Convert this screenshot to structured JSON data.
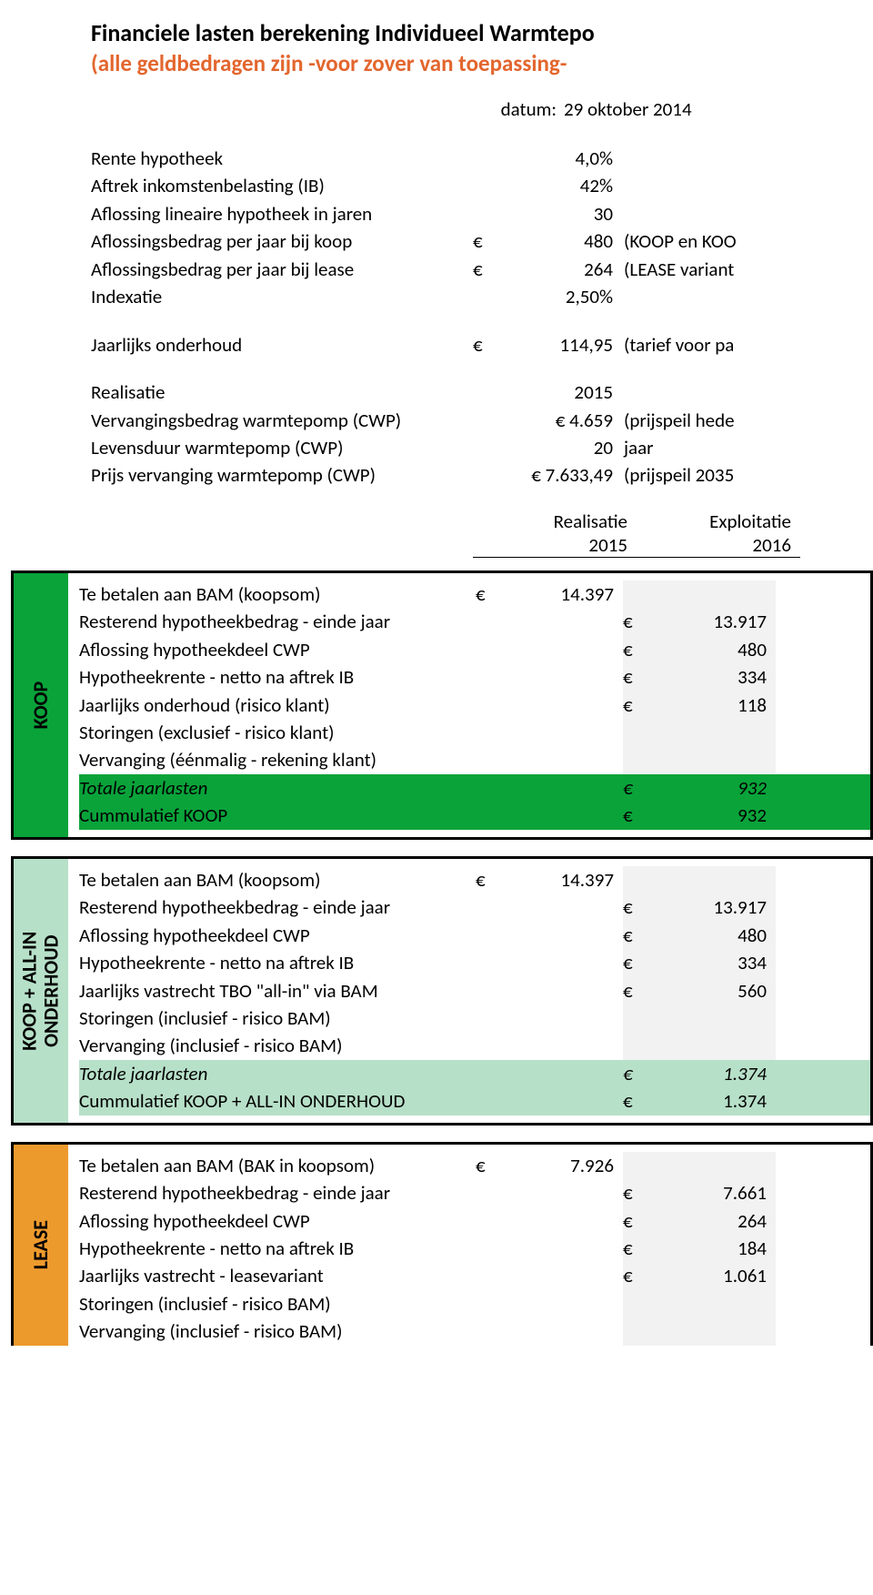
{
  "header": {
    "title": "Financiele lasten berekening Individueel Warmtepo",
    "subtitle": "(alle geldbedragen zijn -voor zover van toepassing-",
    "date_label": "datum:",
    "date_value": "29 oktober 2014"
  },
  "params1": [
    {
      "label": "Rente hypotheek",
      "sym": "",
      "val": "4,0%",
      "note": ""
    },
    {
      "label": "Aftrek inkomstenbelasting (IB)",
      "sym": "",
      "val": "42%",
      "note": ""
    },
    {
      "label": "Aflossing lineaire hypotheek in jaren",
      "sym": "",
      "val": "30",
      "note": ""
    },
    {
      "label": "Aflossingsbedrag per jaar bij koop",
      "sym": "€",
      "val": "480",
      "note": "(KOOP en KOO"
    },
    {
      "label": "Aflossingsbedrag per jaar bij lease",
      "sym": "€",
      "val": "264",
      "note": "(LEASE variant"
    },
    {
      "label": "Indexatie",
      "sym": "",
      "val": "2,50%",
      "note": ""
    }
  ],
  "params2": [
    {
      "label": "Jaarlijks onderhoud",
      "sym": "€",
      "val": "114,95",
      "note": "(tarief voor pa"
    }
  ],
  "params3": [
    {
      "label": "Realisatie",
      "sym": "",
      "val": "2015",
      "note": ""
    },
    {
      "label": "Vervangingsbedrag warmtepomp (CWP)",
      "sym": "",
      "val": "€ 4.659",
      "note": "(prijspeil hede"
    },
    {
      "label": "Levensduur warmtepomp (CWP)",
      "sym": "",
      "val": "20",
      "note": "jaar"
    },
    {
      "label": "Prijs vervanging warmtepomp (CWP)",
      "sym": "",
      "val": "€ 7.633,49",
      "note": "(prijspeil 2035"
    }
  ],
  "year_header": {
    "col1_top": "Realisatie",
    "col1_bot": "2015",
    "col2_top": "Exploitatie",
    "col2_bot": "2016"
  },
  "sections": {
    "koop": {
      "tab": "KOOP",
      "rows": [
        {
          "label": "Te betalen aan BAM (koopsom)",
          "c1sym": "€",
          "c1": "14.397",
          "c2sym": "",
          "c2": ""
        },
        {
          "label": "Resterend hypotheekbedrag - einde jaar",
          "c1sym": "",
          "c1": "",
          "c2sym": "€",
          "c2": "13.917"
        },
        {
          "label": "Aflossing hypotheekdeel CWP",
          "c1sym": "",
          "c1": "",
          "c2sym": "€",
          "c2": "480"
        },
        {
          "label": "Hypotheekrente - netto na aftrek IB",
          "c1sym": "",
          "c1": "",
          "c2sym": "€",
          "c2": "334"
        },
        {
          "label": "Jaarlijks onderhoud (risico klant)",
          "c1sym": "",
          "c1": "",
          "c2sym": "€",
          "c2": "118"
        },
        {
          "label": "Storingen (exclusief - risico klant)",
          "c1sym": "",
          "c1": "",
          "c2sym": "",
          "c2": ""
        },
        {
          "label": "Vervanging (éénmalig - rekening klant)",
          "c1sym": "",
          "c1": "",
          "c2sym": "",
          "c2": ""
        }
      ],
      "total": {
        "label": "Totale jaarlasten",
        "c2sym": "€",
        "c2": "932"
      },
      "cum": {
        "label": "Cummulatief KOOP",
        "c2sym": "€",
        "c2": "932"
      }
    },
    "allin": {
      "tab": "KOOP + ALL-IN\nONDERHOUD",
      "rows": [
        {
          "label": "Te betalen aan BAM (koopsom)",
          "c1sym": "€",
          "c1": "14.397",
          "c2sym": "",
          "c2": ""
        },
        {
          "label": "Resterend hypotheekbedrag - einde jaar",
          "c1sym": "",
          "c1": "",
          "c2sym": "€",
          "c2": "13.917"
        },
        {
          "label": "Aflossing hypotheekdeel CWP",
          "c1sym": "",
          "c1": "",
          "c2sym": "€",
          "c2": "480"
        },
        {
          "label": "Hypotheekrente - netto na aftrek IB",
          "c1sym": "",
          "c1": "",
          "c2sym": "€",
          "c2": "334"
        },
        {
          "label": "Jaarlijks vastrecht TBO \"all-in\" via BAM",
          "c1sym": "",
          "c1": "",
          "c2sym": "€",
          "c2": "560"
        },
        {
          "label": "Storingen (inclusief - risico BAM)",
          "c1sym": "",
          "c1": "",
          "c2sym": "",
          "c2": ""
        },
        {
          "label": "Vervanging (inclusief - risico BAM)",
          "c1sym": "",
          "c1": "",
          "c2sym": "",
          "c2": ""
        }
      ],
      "total": {
        "label": "Totale jaarlasten",
        "c2sym": "€",
        "c2": "1.374"
      },
      "cum": {
        "label": "Cummulatief KOOP + ALL-IN ONDERHOUD",
        "c2sym": "€",
        "c2": "1.374"
      }
    },
    "lease": {
      "tab": "LEASE",
      "rows": [
        {
          "label": "Te betalen aan BAM (BAK in koopsom)",
          "c1sym": "€",
          "c1": "7.926",
          "c2sym": "",
          "c2": ""
        },
        {
          "label": "Resterend hypotheekbedrag - einde jaar",
          "c1sym": "",
          "c1": "",
          "c2sym": "€",
          "c2": "7.661"
        },
        {
          "label": "Aflossing hypotheekdeel CWP",
          "c1sym": "",
          "c1": "",
          "c2sym": "€",
          "c2": "264"
        },
        {
          "label": "Hypotheekrente - netto na aftrek IB",
          "c1sym": "",
          "c1": "",
          "c2sym": "€",
          "c2": "184"
        },
        {
          "label": "Jaarlijks vastrecht - leasevariant",
          "c1sym": "",
          "c1": "",
          "c2sym": "€",
          "c2": "1.061"
        },
        {
          "label": "Storingen (inclusief - risico BAM)",
          "c1sym": "",
          "c1": "",
          "c2sym": "",
          "c2": ""
        },
        {
          "label": "Vervanging (inclusief - risico BAM)",
          "c1sym": "",
          "c1": "",
          "c2sym": "",
          "c2": ""
        }
      ]
    }
  }
}
